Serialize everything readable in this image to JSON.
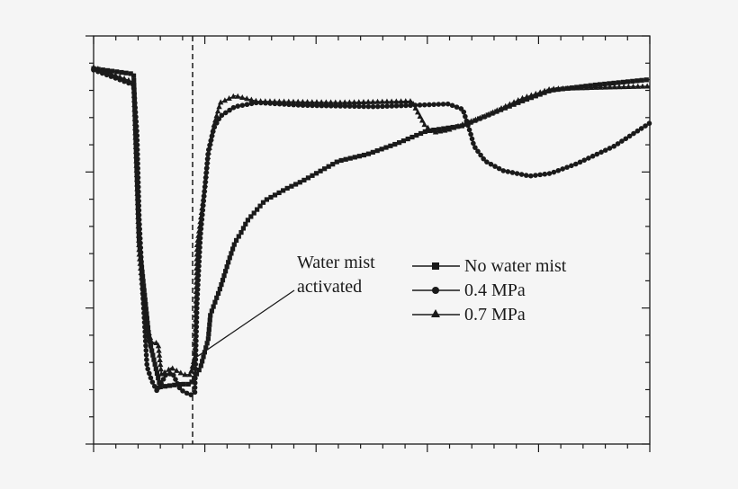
{
  "chart_data": {
    "type": "line",
    "title": "",
    "xlabel": "",
    "ylabel": "",
    "xlim": [
      0,
      5
    ],
    "ylim": [
      0,
      3
    ],
    "x_major_ticks": 5,
    "x_minor_per_major": 5,
    "y_major_ticks": 3,
    "y_minor_per_major": 5,
    "tick_labels_visible": false,
    "grid": false,
    "legend_position": "center-right",
    "line_color": "#1a1a1a",
    "annotation": {
      "line1": "Water mist",
      "line2": "activated",
      "x": 0.89,
      "arrow_to": [
        0.89,
        0.62
      ]
    },
    "series": [
      {
        "name": "No water mist",
        "marker": "square",
        "points": [
          [
            0,
            2.76
          ],
          [
            0.36,
            2.72
          ],
          [
            0.41,
            1.48
          ],
          [
            0.5,
            0.77
          ],
          [
            0.57,
            0.52
          ],
          [
            0.6,
            0.42
          ],
          [
            0.78,
            0.44
          ],
          [
            0.87,
            0.44
          ],
          [
            0.96,
            0.56
          ],
          [
            1.03,
            0.77
          ],
          [
            1.05,
            0.95
          ],
          [
            1.14,
            1.15
          ],
          [
            1.22,
            1.36
          ],
          [
            1.27,
            1.48
          ],
          [
            1.33,
            1.56
          ],
          [
            1.38,
            1.64
          ],
          [
            1.54,
            1.79
          ],
          [
            1.74,
            1.88
          ],
          [
            1.87,
            1.93
          ],
          [
            2.2,
            2.08
          ],
          [
            2.46,
            2.13
          ],
          [
            2.73,
            2.21
          ],
          [
            2.99,
            2.3
          ],
          [
            3.32,
            2.34
          ],
          [
            3.52,
            2.41
          ],
          [
            3.85,
            2.52
          ],
          [
            4.11,
            2.6
          ],
          [
            4.51,
            2.64
          ],
          [
            5,
            2.68
          ]
        ]
      },
      {
        "name": "0.4 MPa",
        "marker": "circle",
        "points": [
          [
            0,
            2.75
          ],
          [
            0.36,
            2.64
          ],
          [
            0.39,
            2.28
          ],
          [
            0.41,
            1.65
          ],
          [
            0.45,
            1.0
          ],
          [
            0.48,
            0.57
          ],
          [
            0.52,
            0.47
          ],
          [
            0.57,
            0.39
          ],
          [
            0.65,
            0.51
          ],
          [
            0.71,
            0.52
          ],
          [
            0.78,
            0.4
          ],
          [
            0.87,
            0.36
          ],
          [
            0.91,
            0.38
          ],
          [
            0.93,
            1.04
          ],
          [
            0.96,
            1.53
          ],
          [
            1.03,
            2.15
          ],
          [
            1.08,
            2.32
          ],
          [
            1.14,
            2.41
          ],
          [
            1.27,
            2.48
          ],
          [
            1.47,
            2.51
          ],
          [
            1.87,
            2.49
          ],
          [
            2.53,
            2.48
          ],
          [
            3.19,
            2.5
          ],
          [
            3.32,
            2.46
          ],
          [
            3.39,
            2.28
          ],
          [
            3.42,
            2.19
          ],
          [
            3.52,
            2.08
          ],
          [
            3.68,
            2.01
          ],
          [
            3.92,
            1.97
          ],
          [
            4.11,
            1.99
          ],
          [
            4.34,
            2.06
          ],
          [
            4.68,
            2.19
          ],
          [
            5,
            2.36
          ]
        ]
      },
      {
        "name": "0.7 MPa",
        "marker": "triangle",
        "points": [
          [
            0,
            2.77
          ],
          [
            0.36,
            2.66
          ],
          [
            0.39,
            1.93
          ],
          [
            0.41,
            1.4
          ],
          [
            0.45,
            1.05
          ],
          [
            0.48,
            0.87
          ],
          [
            0.52,
            0.75
          ],
          [
            0.58,
            0.74
          ],
          [
            0.61,
            0.51
          ],
          [
            0.7,
            0.56
          ],
          [
            0.81,
            0.51
          ],
          [
            0.87,
            0.51
          ],
          [
            0.91,
            0.64
          ],
          [
            0.93,
            1.46
          ],
          [
            0.96,
            1.64
          ],
          [
            1.0,
            1.89
          ],
          [
            1.03,
            2.13
          ],
          [
            1.08,
            2.34
          ],
          [
            1.14,
            2.51
          ],
          [
            1.27,
            2.56
          ],
          [
            1.47,
            2.52
          ],
          [
            2.2,
            2.51
          ],
          [
            2.86,
            2.52
          ],
          [
            2.92,
            2.43
          ],
          [
            2.98,
            2.34
          ],
          [
            3.06,
            2.29
          ],
          [
            3.19,
            2.31
          ],
          [
            3.52,
            2.41
          ],
          [
            3.85,
            2.54
          ],
          [
            4.11,
            2.61
          ],
          [
            4.51,
            2.62
          ],
          [
            5,
            2.63
          ]
        ]
      }
    ]
  }
}
